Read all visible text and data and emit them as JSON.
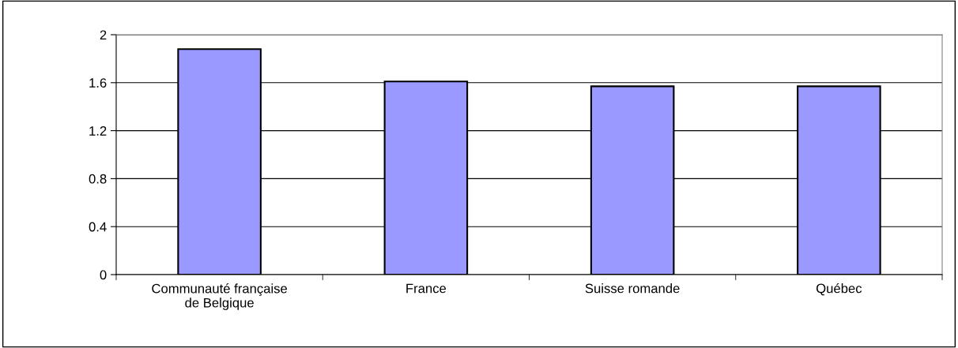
{
  "chart_data": {
    "type": "bar",
    "categories": [
      "Communauté française\nde Belgique",
      "France",
      "Suisse romande",
      "Québec"
    ],
    "values": [
      1.88,
      1.61,
      1.57,
      1.57
    ],
    "color": "#9999ff",
    "ylim": [
      0,
      2
    ],
    "yticks": [
      0,
      0.4,
      0.8,
      1.2,
      1.6,
      2
    ],
    "grid": "y"
  }
}
